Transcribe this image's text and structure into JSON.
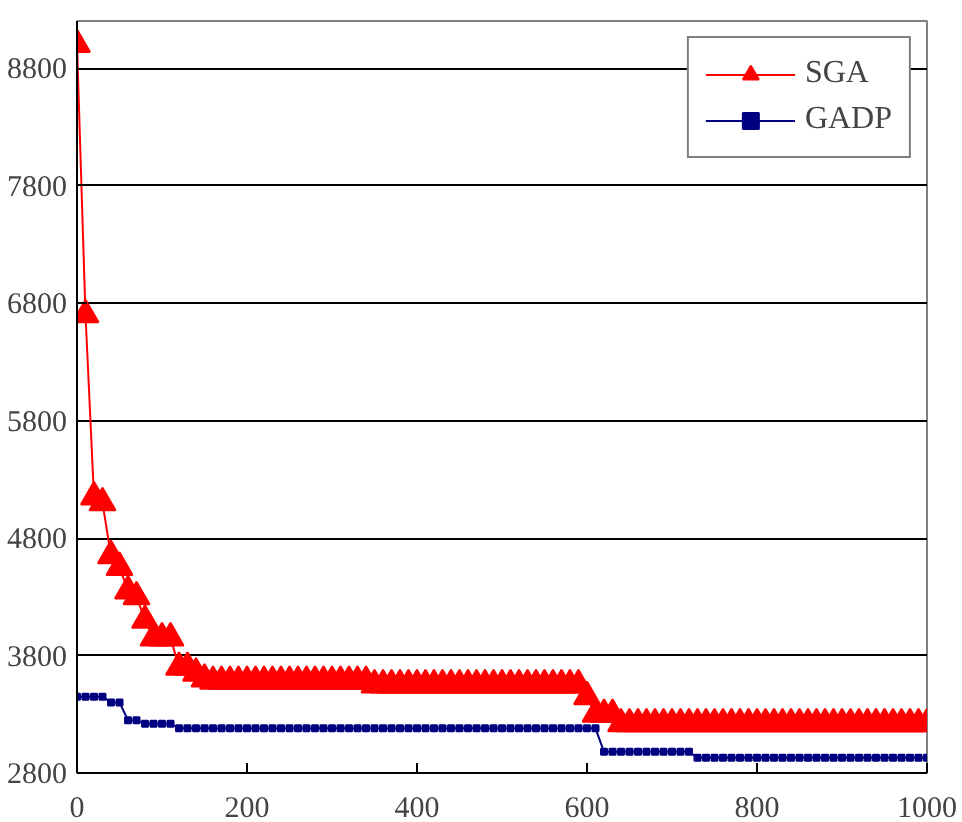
{
  "chart_data": {
    "type": "line",
    "x": [
      0,
      10,
      20,
      30,
      40,
      50,
      60,
      70,
      80,
      90,
      100,
      110,
      120,
      130,
      140,
      150,
      160,
      170,
      180,
      190,
      200,
      210,
      220,
      230,
      240,
      250,
      260,
      270,
      280,
      290,
      300,
      310,
      320,
      330,
      340,
      350,
      360,
      370,
      380,
      390,
      400,
      410,
      420,
      430,
      440,
      450,
      460,
      470,
      480,
      490,
      500,
      510,
      520,
      530,
      540,
      550,
      560,
      570,
      580,
      590,
      600,
      610,
      620,
      630,
      640,
      650,
      660,
      670,
      680,
      690,
      700,
      710,
      720,
      730,
      740,
      750,
      760,
      770,
      780,
      790,
      800,
      810,
      820,
      830,
      840,
      850,
      860,
      870,
      880,
      890,
      900,
      910,
      920,
      930,
      940,
      950,
      960,
      970,
      980,
      990,
      1000
    ],
    "series": [
      {
        "name": "SGA",
        "color": "#ff0000",
        "marker": "triangle",
        "values": [
          9000,
          6700,
          5150,
          5100,
          4650,
          4550,
          4350,
          4300,
          4100,
          3950,
          3950,
          3950,
          3700,
          3700,
          3650,
          3600,
          3580,
          3580,
          3580,
          3580,
          3580,
          3580,
          3580,
          3580,
          3580,
          3580,
          3580,
          3580,
          3580,
          3580,
          3580,
          3580,
          3580,
          3580,
          3580,
          3550,
          3550,
          3550,
          3550,
          3550,
          3550,
          3550,
          3550,
          3550,
          3550,
          3550,
          3550,
          3550,
          3550,
          3550,
          3550,
          3550,
          3550,
          3550,
          3550,
          3550,
          3550,
          3550,
          3550,
          3550,
          3450,
          3300,
          3300,
          3300,
          3220,
          3220,
          3220,
          3220,
          3220,
          3220,
          3220,
          3220,
          3220,
          3220,
          3220,
          3220,
          3220,
          3220,
          3220,
          3220,
          3220,
          3220,
          3220,
          3220,
          3220,
          3220,
          3220,
          3220,
          3220,
          3220,
          3220,
          3220,
          3220,
          3220,
          3220,
          3220,
          3220,
          3220,
          3220,
          3220,
          3220
        ]
      },
      {
        "name": "GADP",
        "color": "#000080",
        "marker": "square",
        "values": [
          3450,
          3450,
          3450,
          3450,
          3400,
          3400,
          3250,
          3250,
          3220,
          3220,
          3220,
          3220,
          3180,
          3180,
          3180,
          3180,
          3180,
          3180,
          3180,
          3180,
          3180,
          3180,
          3180,
          3180,
          3180,
          3180,
          3180,
          3180,
          3180,
          3180,
          3180,
          3180,
          3180,
          3180,
          3180,
          3180,
          3180,
          3180,
          3180,
          3180,
          3180,
          3180,
          3180,
          3180,
          3180,
          3180,
          3180,
          3180,
          3180,
          3180,
          3180,
          3180,
          3180,
          3180,
          3180,
          3180,
          3180,
          3180,
          3180,
          3180,
          3180,
          3180,
          2980,
          2980,
          2980,
          2980,
          2980,
          2980,
          2980,
          2980,
          2980,
          2980,
          2980,
          2930,
          2930,
          2930,
          2930,
          2930,
          2930,
          2930,
          2930,
          2930,
          2930,
          2930,
          2930,
          2930,
          2930,
          2930,
          2930,
          2930,
          2930,
          2930,
          2930,
          2930,
          2930,
          2930,
          2930,
          2930,
          2930,
          2930,
          2930
        ]
      }
    ],
    "xlim": [
      0,
      1000
    ],
    "ylim": [
      2800,
      9200
    ],
    "xticks": [
      0,
      200,
      400,
      600,
      800,
      1000
    ],
    "yticks": [
      2800,
      3800,
      4800,
      5800,
      6800,
      7800,
      8800
    ],
    "grid": "y",
    "legend": "top right",
    "line_style": "solid"
  }
}
